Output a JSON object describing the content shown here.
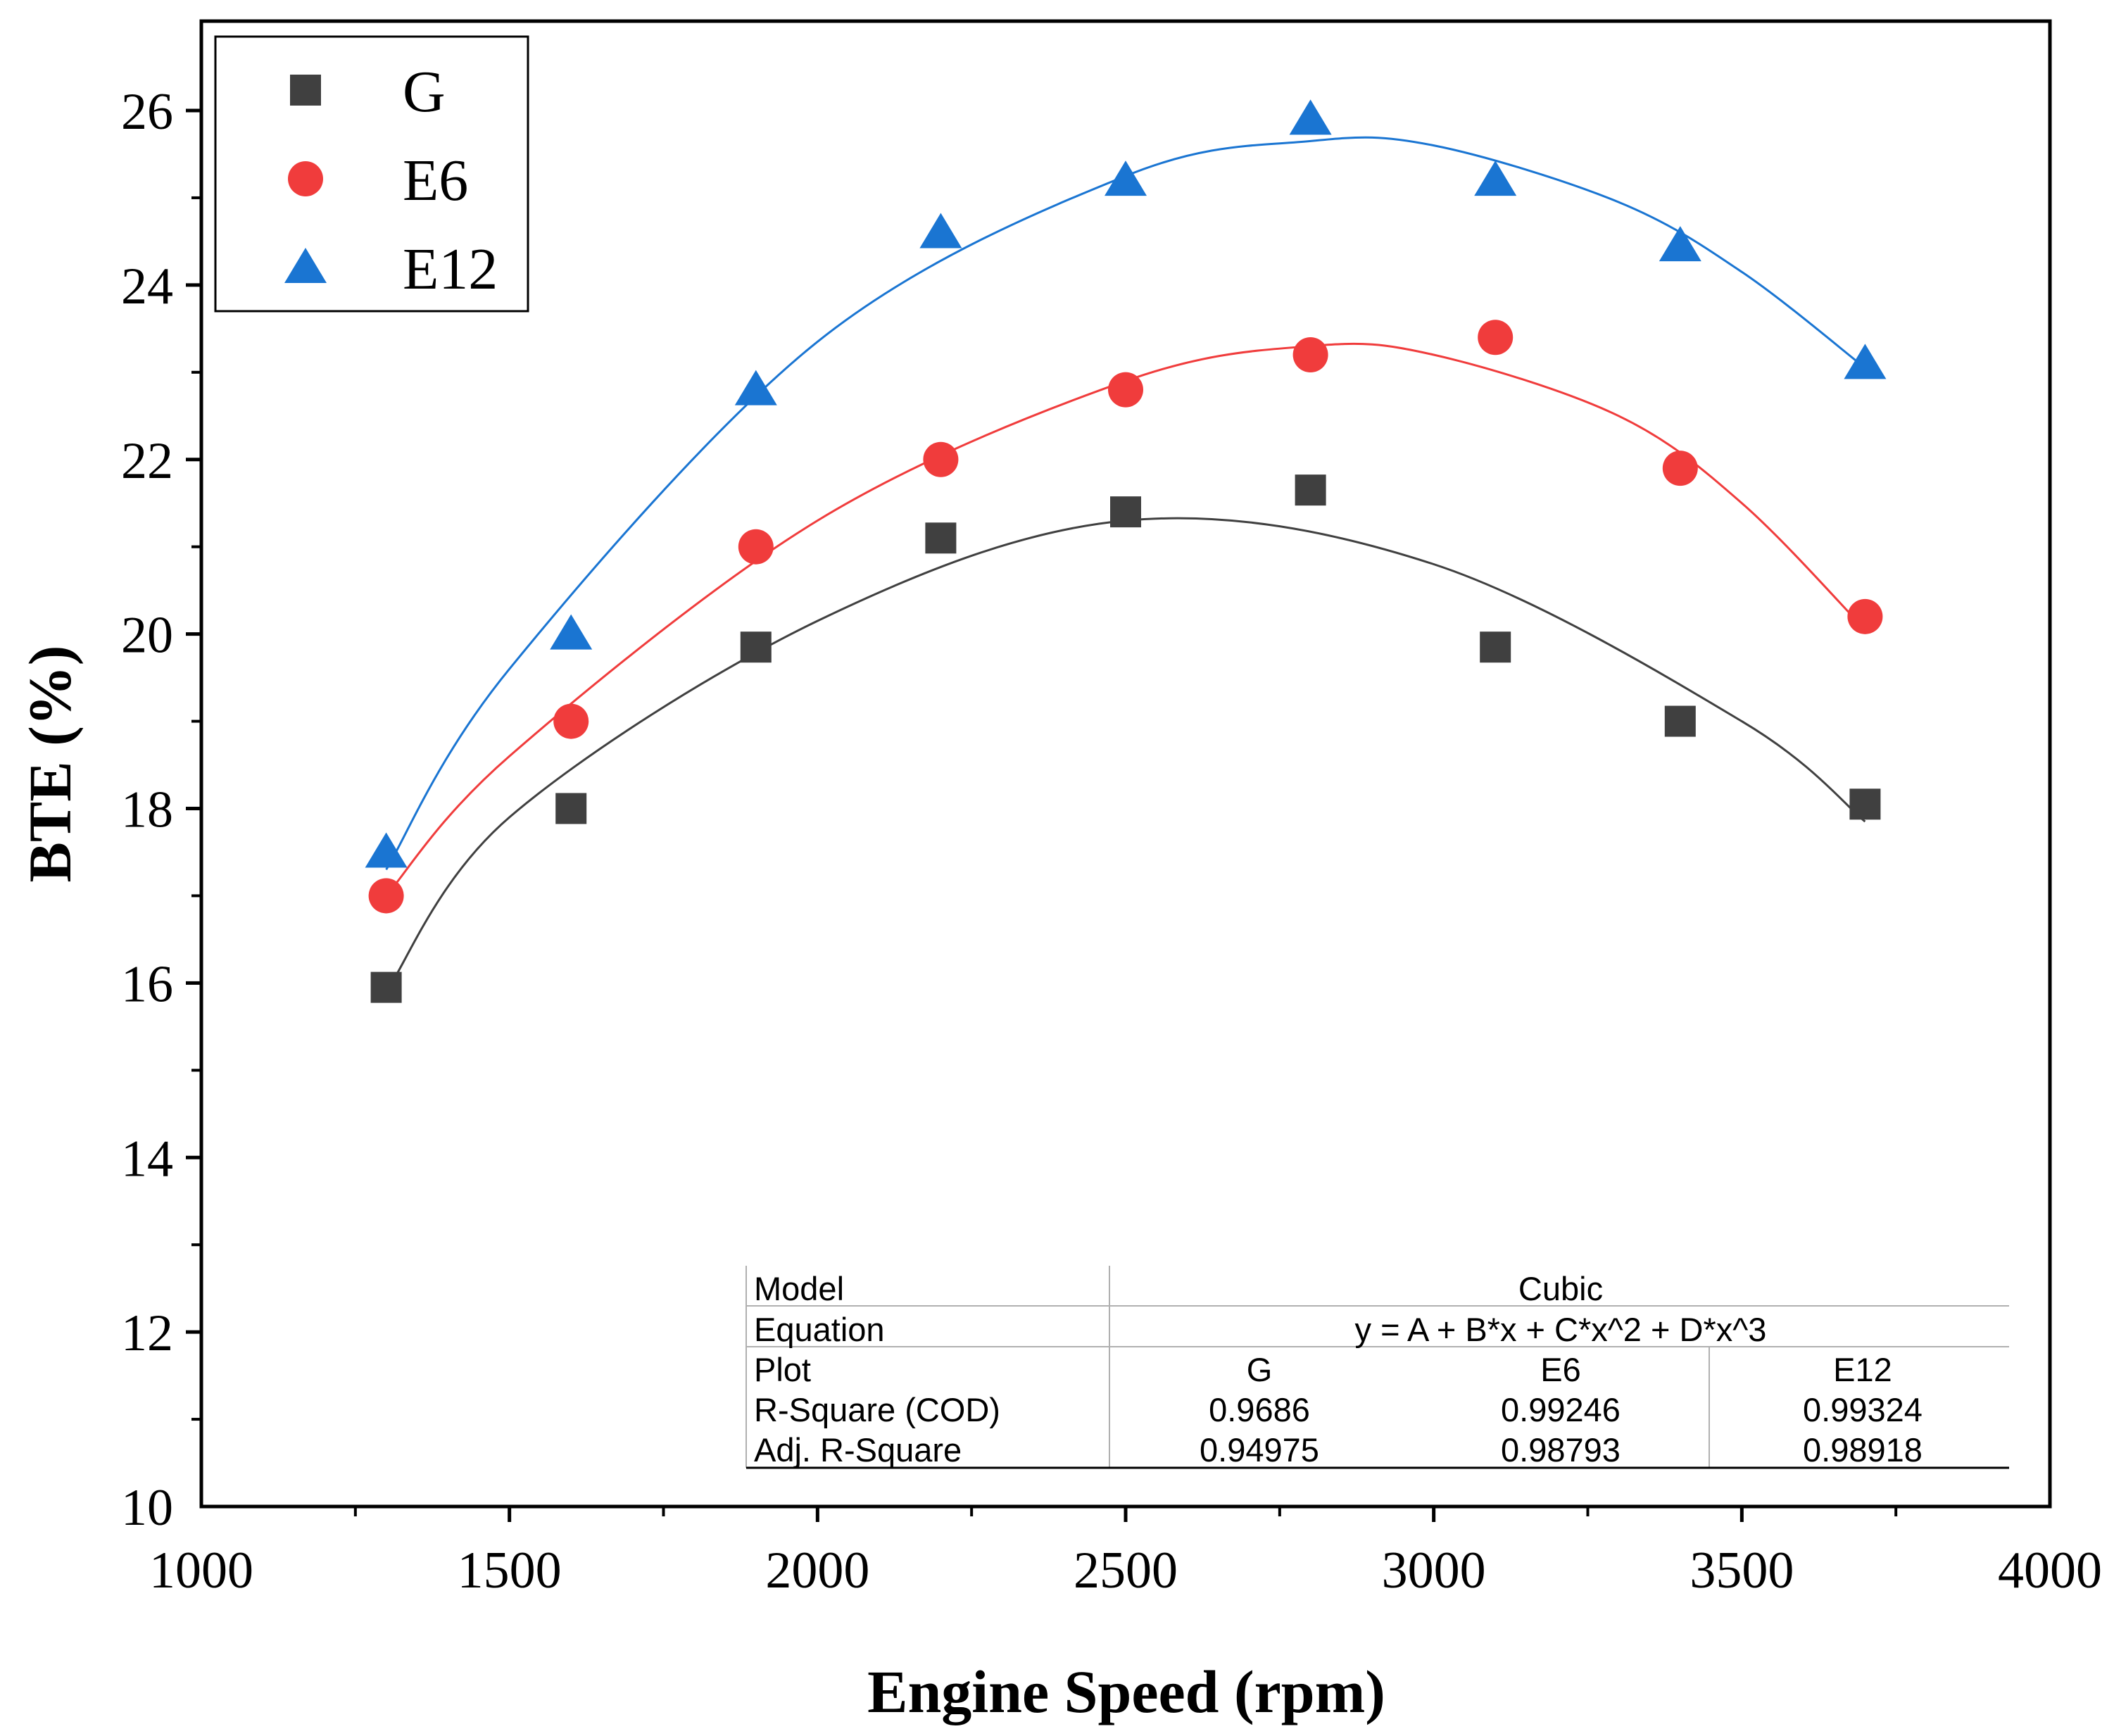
{
  "chart_data": {
    "type": "scatter",
    "title": "",
    "xlabel": "Engine Speed (rpm)",
    "ylabel": "BTE (%)",
    "xlim": [
      1000,
      4000
    ],
    "ylim": [
      10,
      27
    ],
    "xticks": [
      1000,
      1500,
      2000,
      2500,
      3000,
      3500,
      4000
    ],
    "yticks": [
      10,
      12,
      14,
      16,
      18,
      20,
      22,
      24,
      26
    ],
    "legend_position": "top-left",
    "x": [
      1300,
      1600,
      1900,
      2200,
      2500,
      2800,
      3100,
      3400,
      3700
    ],
    "series": [
      {
        "name": "G",
        "marker": "square",
        "color": "#404040",
        "values": [
          15.95,
          18.0,
          19.85,
          21.1,
          21.4,
          21.65,
          19.85,
          19.0,
          18.05
        ],
        "fit": [
          [
            1300,
            15.9
          ],
          [
            1500,
            17.9
          ],
          [
            2000,
            20.15
          ],
          [
            2500,
            21.3
          ],
          [
            3000,
            20.8
          ],
          [
            3500,
            19.0
          ],
          [
            3700,
            17.85
          ]
        ]
      },
      {
        "name": "E6",
        "marker": "circle",
        "color": "#f03c3c",
        "values": [
          17.0,
          19.0,
          21.0,
          22.0,
          22.8,
          23.2,
          23.4,
          21.9,
          20.2
        ],
        "fit": [
          [
            1300,
            17.0
          ],
          [
            1500,
            18.6
          ],
          [
            2000,
            21.3
          ],
          [
            2500,
            22.9
          ],
          [
            2800,
            23.3
          ],
          [
            3000,
            23.2
          ],
          [
            3300,
            22.5
          ],
          [
            3500,
            21.5
          ],
          [
            3700,
            20.05
          ]
        ]
      },
      {
        "name": "E12",
        "marker": "triangle",
        "color": "#1a75d2",
        "values": [
          17.5,
          20.0,
          22.8,
          24.6,
          25.2,
          25.9,
          25.2,
          24.45,
          23.1
        ],
        "fit": [
          [
            1300,
            17.3
          ],
          [
            1500,
            19.6
          ],
          [
            2000,
            23.35
          ],
          [
            2500,
            25.25
          ],
          [
            2800,
            25.65
          ],
          [
            3000,
            25.6
          ],
          [
            3300,
            24.95
          ],
          [
            3500,
            24.15
          ],
          [
            3700,
            23.05
          ]
        ]
      }
    ],
    "fit_table": {
      "model_label": "Model",
      "model_value": "Cubic",
      "equation_label": "Equation",
      "equation_value": "y = A + B*x + C*x^2 + D*x^3",
      "plot_label": "Plot",
      "plots": [
        "G",
        "E6",
        "E12"
      ],
      "r_square_label": "R-Square (COD)",
      "r_square": [
        "0.9686",
        "0.99246",
        "0.99324"
      ],
      "adj_r_square_label": "Adj. R-Square",
      "adj_r_square": [
        "0.94975",
        "0.98793",
        "0.98918"
      ]
    }
  }
}
